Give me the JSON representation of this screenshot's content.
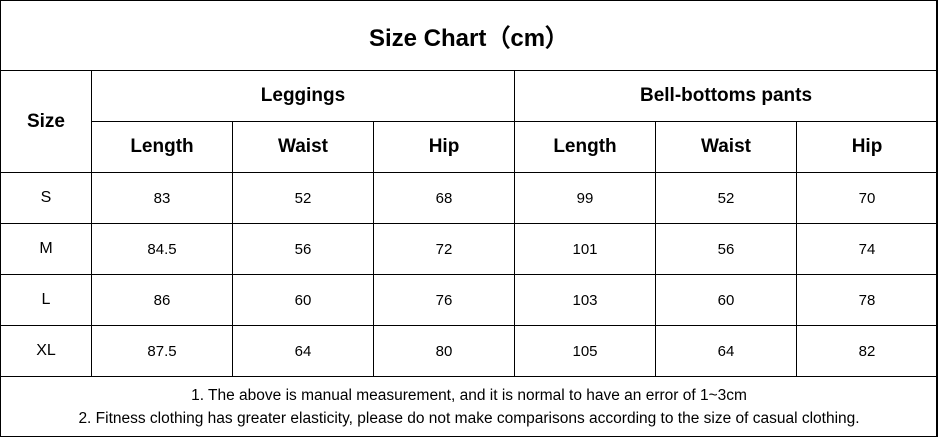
{
  "title": "Size Chart（cm）",
  "header": {
    "size": "Size",
    "groups": [
      "Leggings",
      "Bell-bottoms pants"
    ],
    "columns": [
      "Length",
      "Waist",
      "Hip",
      "Length",
      "Waist",
      "Hip"
    ]
  },
  "rows": [
    [
      "S",
      "83",
      "52",
      "68",
      "99",
      "52",
      "70"
    ],
    [
      "M",
      "84.5",
      "56",
      "72",
      "101",
      "56",
      "74"
    ],
    [
      "L",
      "86",
      "60",
      "76",
      "103",
      "60",
      "78"
    ],
    [
      "XL",
      "87.5",
      "64",
      "80",
      "105",
      "64",
      "82"
    ]
  ],
  "notes": [
    "1. The above is manual measurement, and it is normal to have an error of 1~3cm",
    "2. Fitness clothing has greater elasticity, please do not make comparisons according to the size of casual clothing."
  ]
}
